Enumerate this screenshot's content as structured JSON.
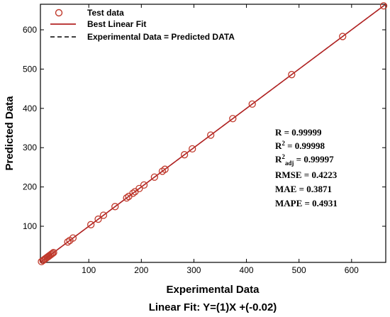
{
  "chart_data": {
    "type": "scatter",
    "xlabel": "Experimental Data",
    "ylabel": "Predicted Data",
    "subtitle": "Linear Fit: Y=(1)X +(-0.02)",
    "xlim": [
      8,
      665
    ],
    "ylim": [
      8,
      665
    ],
    "xticks": [
      100,
      200,
      300,
      400,
      500,
      600
    ],
    "yticks": [
      100,
      200,
      300,
      400,
      500,
      600
    ],
    "grid": false,
    "legend_position": "top-left",
    "legend": [
      {
        "label": "Test data",
        "kind": "marker",
        "color": "#c0392b"
      },
      {
        "label": "Best Linear Fit",
        "kind": "line",
        "color": "#b22222"
      },
      {
        "label": "Experimental Data = Predicted DATA",
        "kind": "dashed",
        "color": "#000000"
      }
    ],
    "series": [
      {
        "name": "Test data",
        "x": [
          10,
          13,
          15,
          17,
          19,
          21,
          23,
          25,
          27,
          29,
          31,
          33,
          60,
          64,
          70,
          104,
          118,
          128,
          150,
          172,
          176,
          184,
          188,
          196,
          205,
          225,
          240,
          245,
          282,
          297,
          332,
          374,
          411,
          486,
          583,
          661
        ],
        "y": [
          10,
          13,
          15,
          17,
          19,
          21,
          23,
          25,
          27,
          29,
          31,
          33,
          60,
          64,
          70,
          104,
          118,
          128,
          150,
          172,
          176,
          184,
          188,
          196,
          205,
          225,
          240,
          245,
          282,
          297,
          332,
          374,
          411,
          486,
          583,
          661
        ]
      },
      {
        "name": "Best Linear Fit",
        "slope": 1,
        "intercept": -0.02
      },
      {
        "name": "Experimental Data = Predicted DATA",
        "slope": 1,
        "intercept": 0
      }
    ],
    "stats": {
      "r": "R = 0.99999",
      "r2_base": "R",
      "r2_sup": "2",
      "r2_rest": " = 0.99998",
      "r2adj_base": "R",
      "r2adj_sup": "2",
      "r2adj_sub": "adj",
      "r2adj_rest": " = 0.99997",
      "rmse": "RMSE = 0.4223",
      "mae": "MAE = 0.3871",
      "mape": "MAPE = 0.4931"
    }
  }
}
